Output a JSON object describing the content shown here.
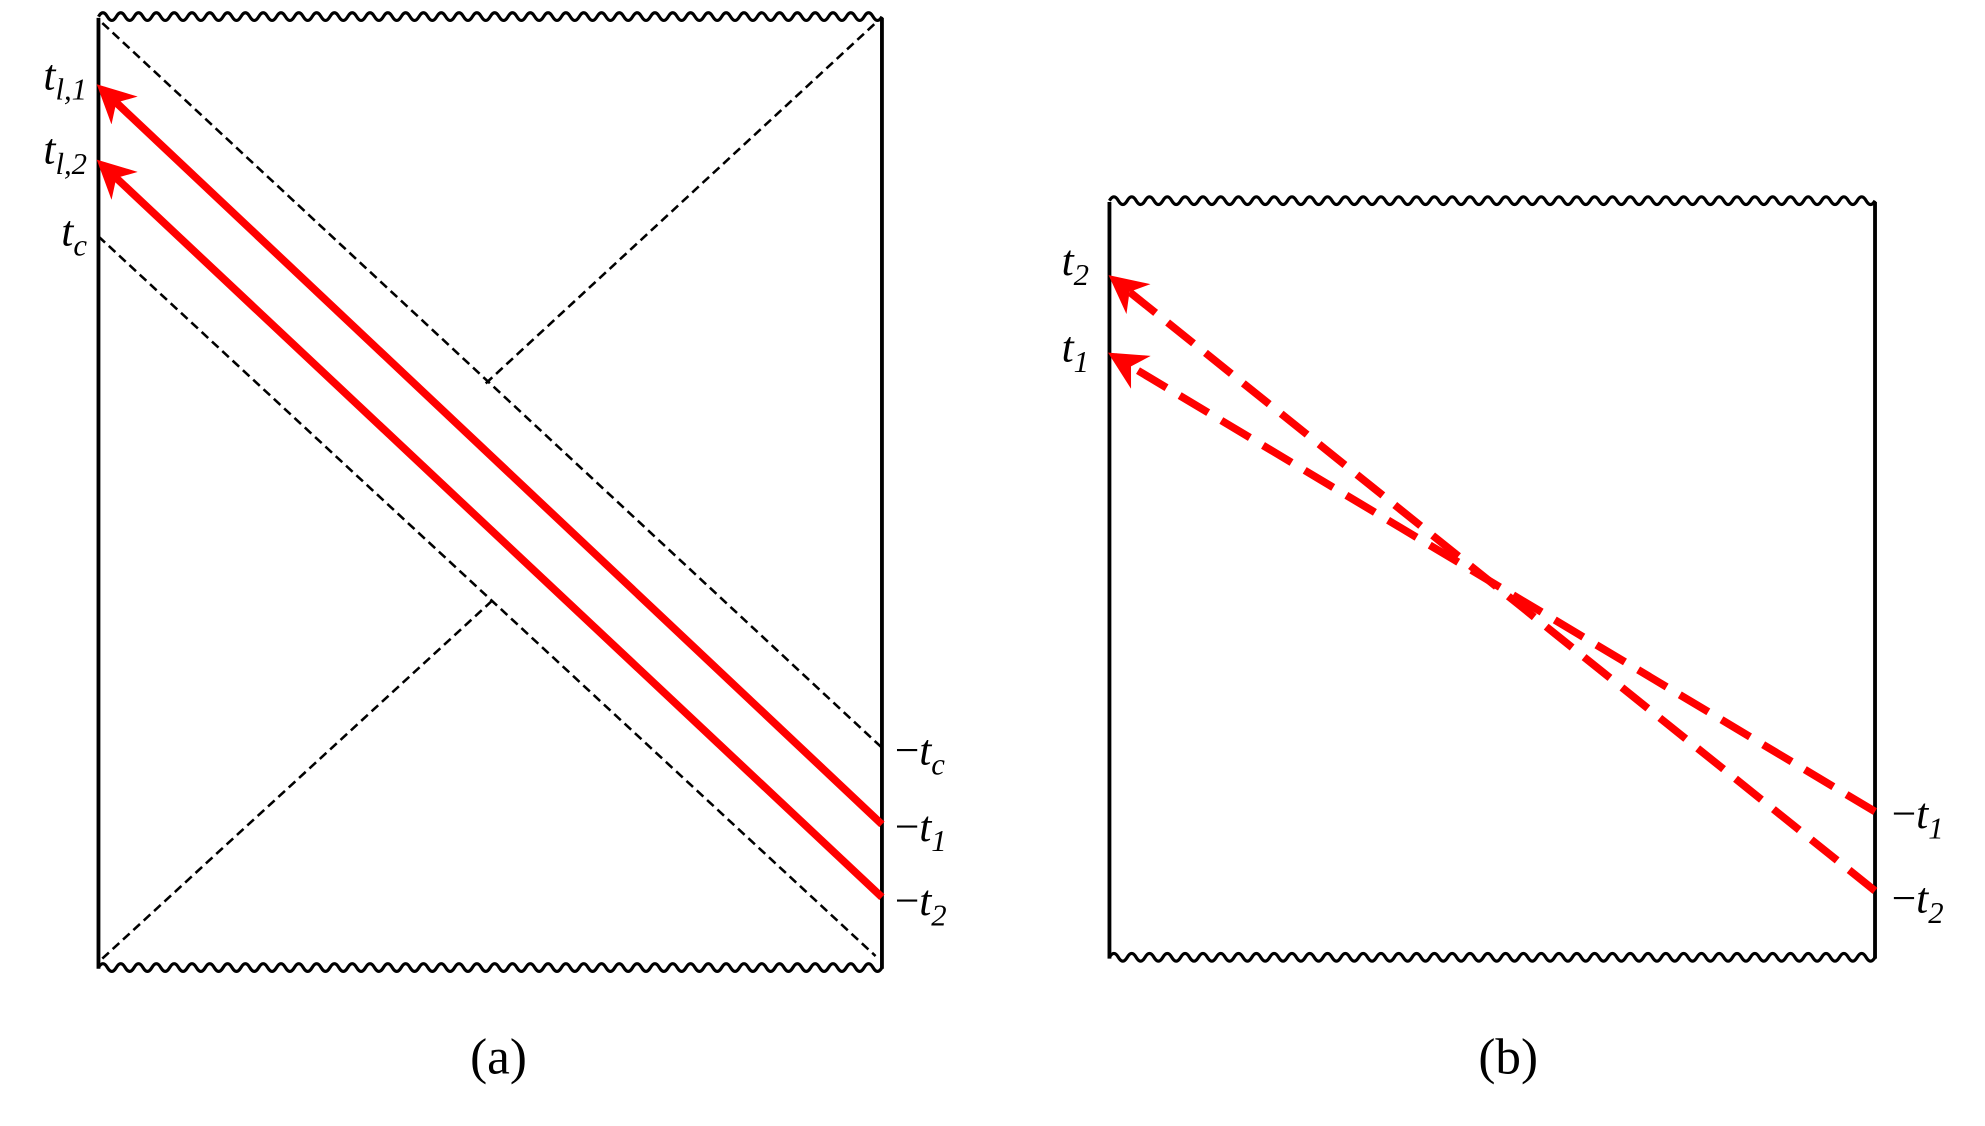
{
  "panel_a": {
    "left_labels": [
      {
        "base": "t",
        "sub": "l,1"
      },
      {
        "base": "t",
        "sub": "l,2"
      },
      {
        "base": "t",
        "sub": "c"
      }
    ],
    "right_labels": [
      {
        "sign": "−",
        "base": "t",
        "sub": "c"
      },
      {
        "sign": "−",
        "base": "t",
        "sub": "1"
      },
      {
        "sign": "−",
        "base": "t",
        "sub": "2"
      }
    ],
    "caption": "(a)"
  },
  "panel_b": {
    "left_labels": [
      {
        "base": "t",
        "sub": "2"
      },
      {
        "base": "t",
        "sub": "1"
      }
    ],
    "right_labels": [
      {
        "sign": "−",
        "base": "t",
        "sub": "1"
      },
      {
        "sign": "−",
        "base": "t",
        "sub": "2"
      }
    ],
    "caption": "(b)"
  }
}
